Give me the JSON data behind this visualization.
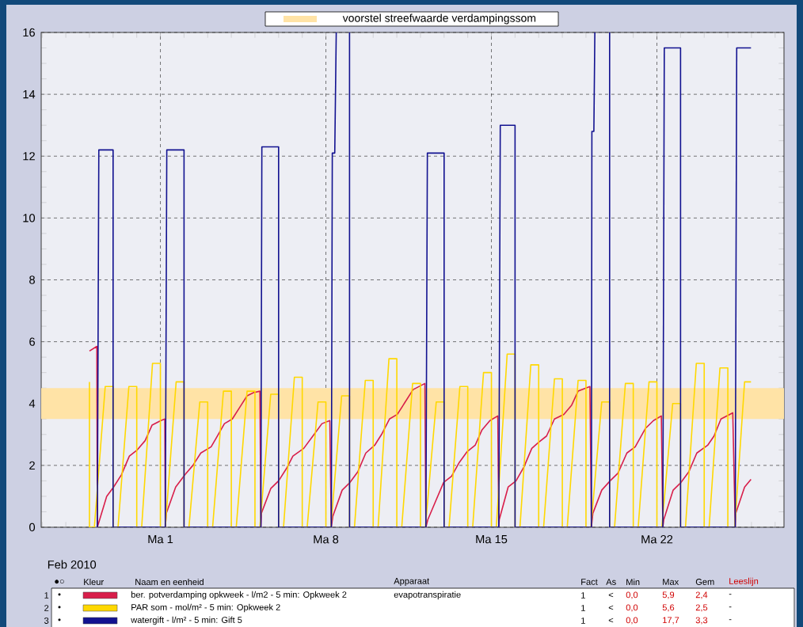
{
  "chart_data": {
    "type": "line",
    "xlabel": "Feb 2010",
    "xlim": [
      "2010-02-23T23:00",
      "2010-03-27T09:00"
    ],
    "xticks": [
      {
        "value": "2010-03-01",
        "label": "Ma 1"
      },
      {
        "value": "2010-03-08",
        "label": "Ma 8"
      },
      {
        "value": "2010-03-15",
        "label": "Ma 15"
      },
      {
        "value": "2010-03-22",
        "label": "Ma 22"
      }
    ],
    "ylim": [
      0,
      16
    ],
    "yticks": [
      0,
      2,
      4,
      6,
      8,
      10,
      12,
      14,
      16
    ],
    "grid": true,
    "legend": "bottom",
    "bands": [
      {
        "axis": "y",
        "from": 3.5,
        "to": 4.5,
        "label": "voorstel streefwaarde verdampingssom",
        "color": "#ffe3a6"
      }
    ],
    "series": [
      {
        "name": "ber. potverdamping opkweek - l/m2 - 5 min: Opkweek 2",
        "color": "#d81e4a",
        "x": [
          "2010-02-26T00:00",
          "2010-02-26T07:30",
          "2010-02-26T08:00",
          "2010-02-26T17:30",
          "2010-02-27T00:30",
          "2010-02-27T08:30",
          "2010-02-27T16:30",
          "2010-02-28T00:30",
          "2010-02-28T08:30",
          "2010-02-28T15:30",
          "2010-03-01T00:30",
          "2010-03-01T04:30",
          "2010-03-01T05:00",
          "2010-03-01T06:00",
          "2010-03-01T15:30",
          "2010-03-02T01:00",
          "2010-03-02T09:00",
          "2010-03-02T17:00",
          "2010-03-03T03:30",
          "2010-03-03T09:00",
          "2010-03-03T17:00",
          "2010-03-04T01:00",
          "2010-03-04T09:00",
          "2010-03-04T16:00",
          "2010-03-04T22:30",
          "2010-03-05T05:00",
          "2010-03-05T06:00",
          "2010-03-05T06:30",
          "2010-03-05T16:00",
          "2010-03-06T00:00",
          "2010-03-06T08:00",
          "2010-03-06T14:30",
          "2010-03-07T01:30",
          "2010-03-07T12:00",
          "2010-03-07T20:00",
          "2010-03-08T04:00",
          "2010-03-08T05:30",
          "2010-03-08T07:00",
          "2010-03-08T16:30",
          "2010-03-09T00:30",
          "2010-03-09T08:30",
          "2010-03-09T16:30",
          "2010-03-10T01:30",
          "2010-03-10T08:30",
          "2010-03-10T16:30",
          "2010-03-11T00:30",
          "2010-03-11T08:30",
          "2010-03-11T16:30",
          "2010-03-12T04:30",
          "2010-03-12T05:30",
          "2010-03-12T07:30",
          "2010-03-12T15:30",
          "2010-03-12T23:30",
          "2010-03-13T07:30",
          "2010-03-13T15:30",
          "2010-03-13T23:30",
          "2010-03-14T07:30",
          "2010-03-14T14:30",
          "2010-03-14T22:30",
          "2010-03-15T06:30",
          "2010-03-15T07:30",
          "2010-03-15T08:00",
          "2010-03-15T17:00",
          "2010-03-16T01:00",
          "2010-03-16T09:00",
          "2010-03-16T17:00",
          "2010-03-17T00:00",
          "2010-03-17T08:00",
          "2010-03-17T16:00",
          "2010-03-18T01:30",
          "2010-03-18T09:30",
          "2010-03-18T16:00",
          "2010-03-19T04:00",
          "2010-03-19T05:30",
          "2010-03-19T07:00",
          "2010-03-19T16:00",
          "2010-03-20T00:30",
          "2010-03-20T08:30",
          "2010-03-20T17:30",
          "2010-03-21T02:00",
          "2010-03-21T12:30",
          "2010-03-21T20:30",
          "2010-03-22T04:30",
          "2010-03-22T06:00",
          "2010-03-22T07:00",
          "2010-03-22T16:30",
          "2010-03-23T00:30",
          "2010-03-23T08:30",
          "2010-03-23T16:30",
          "2010-03-24T03:30",
          "2010-03-24T10:00",
          "2010-03-24T17:00",
          "2010-03-25T05:00",
          "2010-03-25T07:30",
          "2010-03-25T08:00",
          "2010-03-25T17:00",
          "2010-03-25T23:30"
        ],
        "values": [
          5.7,
          5.85,
          0,
          1.0,
          1.3,
          1.7,
          2.3,
          2.5,
          2.8,
          3.3,
          3.45,
          3.5,
          0,
          0.45,
          1.3,
          1.7,
          2.0,
          2.4,
          2.6,
          2.9,
          3.35,
          3.5,
          3.9,
          4.25,
          4.35,
          4.4,
          0,
          0.45,
          1.25,
          1.5,
          1.9,
          2.3,
          2.55,
          3.0,
          3.35,
          3.45,
          0,
          0.35,
          1.2,
          1.45,
          1.8,
          2.4,
          2.65,
          3.0,
          3.5,
          3.65,
          4.05,
          4.45,
          4.65,
          0,
          0.25,
          0.85,
          1.45,
          1.65,
          2.1,
          2.45,
          2.65,
          3.15,
          3.45,
          3.6,
          0,
          0.25,
          1.3,
          1.5,
          1.95,
          2.55,
          2.75,
          2.95,
          3.5,
          3.65,
          3.95,
          4.4,
          4.55,
          0,
          0.45,
          1.2,
          1.5,
          1.75,
          2.4,
          2.6,
          3.2,
          3.45,
          3.6,
          0,
          0.25,
          1.2,
          1.45,
          1.8,
          2.4,
          2.65,
          2.95,
          3.5,
          3.7,
          0,
          0.45,
          1.3,
          1.55
        ]
      },
      {
        "name": "PAR som - mol/m² - 5 min: Opkweek 2",
        "color": "#ffd800",
        "x": [
          "2010-02-26T00:00",
          "2010-02-26T00:00",
          "2010-02-26T05:00",
          "2010-02-26T16:00",
          "2010-02-27T00:00",
          "2010-02-27T00:00",
          "2010-02-27T05:00",
          "2010-02-27T16:00",
          "2010-02-28T00:00",
          "2010-02-28T00:00",
          "2010-02-28T05:00",
          "2010-02-28T16:00",
          "2010-03-01T00:00",
          "2010-03-01T00:00",
          "2010-03-01T05:00",
          "2010-03-01T16:00",
          "2010-03-02T00:00",
          "2010-03-02T00:00",
          "2010-03-02T05:00",
          "2010-03-02T16:00",
          "2010-03-03T00:00",
          "2010-03-03T00:00",
          "2010-03-03T05:00",
          "2010-03-03T16:00",
          "2010-03-04T00:00",
          "2010-03-04T00:00",
          "2010-03-04T05:00",
          "2010-03-04T16:00",
          "2010-03-05T00:00",
          "2010-03-05T00:00",
          "2010-03-05T05:00",
          "2010-03-05T16:00",
          "2010-03-06T00:00",
          "2010-03-06T00:00",
          "2010-03-06T05:00",
          "2010-03-06T16:00",
          "2010-03-07T00:00",
          "2010-03-07T00:00",
          "2010-03-07T05:00",
          "2010-03-07T16:00",
          "2010-03-08T00:00",
          "2010-03-08T00:00",
          "2010-03-08T05:00",
          "2010-03-08T16:00",
          "2010-03-09T00:00",
          "2010-03-09T00:00",
          "2010-03-09T05:00",
          "2010-03-09T16:00",
          "2010-03-10T00:00",
          "2010-03-10T00:00",
          "2010-03-10T05:00",
          "2010-03-10T16:00",
          "2010-03-11T00:00",
          "2010-03-11T00:00",
          "2010-03-11T05:00",
          "2010-03-11T16:00",
          "2010-03-12T00:00",
          "2010-03-12T00:00",
          "2010-03-12T05:00",
          "2010-03-12T16:00",
          "2010-03-13T00:00",
          "2010-03-13T00:00",
          "2010-03-13T05:00",
          "2010-03-13T16:00",
          "2010-03-14T00:00",
          "2010-03-14T00:00",
          "2010-03-14T05:00",
          "2010-03-14T16:00",
          "2010-03-15T00:00",
          "2010-03-15T00:00",
          "2010-03-15T05:00",
          "2010-03-15T16:00",
          "2010-03-16T00:00",
          "2010-03-16T00:00",
          "2010-03-16T05:00",
          "2010-03-16T16:00",
          "2010-03-17T00:00",
          "2010-03-17T00:00",
          "2010-03-17T05:00",
          "2010-03-17T16:00",
          "2010-03-18T00:00",
          "2010-03-18T00:00",
          "2010-03-18T05:00",
          "2010-03-18T16:00",
          "2010-03-19T00:00",
          "2010-03-19T00:00",
          "2010-03-19T05:00",
          "2010-03-19T16:00",
          "2010-03-20T00:00",
          "2010-03-20T00:00",
          "2010-03-20T05:00",
          "2010-03-20T16:00",
          "2010-03-21T00:00",
          "2010-03-21T00:00",
          "2010-03-21T05:00",
          "2010-03-21T16:00",
          "2010-03-22T00:00",
          "2010-03-22T00:00",
          "2010-03-22T05:00",
          "2010-03-22T16:00",
          "2010-03-23T00:00",
          "2010-03-23T00:00",
          "2010-03-23T05:00",
          "2010-03-23T16:00",
          "2010-03-24T00:00",
          "2010-03-24T00:00",
          "2010-03-24T05:00",
          "2010-03-24T16:00",
          "2010-03-25T00:00",
          "2010-03-25T00:00",
          "2010-03-25T07:00",
          "2010-03-25T17:00",
          "2010-03-25T23:30"
        ],
        "values": [
          4.7,
          0,
          0,
          4.55,
          4.55,
          0,
          0,
          4.55,
          4.55,
          0,
          0,
          5.3,
          5.3,
          0,
          0,
          4.7,
          4.7,
          0,
          0,
          4.05,
          4.05,
          0,
          0,
          4.4,
          4.4,
          0,
          0,
          4.4,
          4.4,
          0,
          0,
          4.3,
          4.3,
          0,
          0,
          4.85,
          4.85,
          0,
          0,
          4.05,
          4.05,
          0,
          0,
          4.25,
          4.25,
          0,
          0,
          4.75,
          4.75,
          0,
          0,
          5.45,
          5.45,
          0,
          0,
          4.65,
          4.65,
          0,
          0,
          4.05,
          4.05,
          0,
          0,
          4.55,
          4.55,
          0,
          0,
          5.0,
          5.0,
          0,
          0,
          5.6,
          5.6,
          0,
          0,
          5.25,
          5.25,
          0,
          0,
          4.8,
          4.8,
          0,
          0,
          4.75,
          4.75,
          0,
          0,
          4.05,
          4.05,
          0,
          0,
          4.65,
          4.65,
          0,
          0,
          4.7,
          4.7,
          0,
          0,
          4.0,
          4.0,
          0,
          0,
          5.3,
          5.3,
          0,
          0,
          5.15,
          5.15,
          0,
          0,
          4.7,
          4.7
        ]
      },
      {
        "name": "watergift - l/m² - 5 min: Gift 5",
        "color": "#121290",
        "x": [
          "2010-02-26T08:00",
          "2010-02-26T09:30",
          "2010-02-27T00:00",
          "2010-02-27T00:00",
          "2010-03-01T05:00",
          "2010-03-01T06:30",
          "2010-03-02T00:00",
          "2010-03-02T00:00",
          "2010-03-05T06:00",
          "2010-03-05T07:00",
          "2010-03-06T00:00",
          "2010-03-06T00:00",
          "2010-03-08T05:30",
          "2010-03-08T06:30",
          "2010-03-08T09:00",
          "2010-03-08T10:30",
          "2010-03-08T12:00",
          "2010-03-09T00:00",
          "2010-03-09T00:00",
          "2010-03-12T05:30",
          "2010-03-12T07:00",
          "2010-03-13T00:00",
          "2010-03-13T00:00",
          "2010-03-15T07:30",
          "2010-03-15T09:00",
          "2010-03-16T00:00",
          "2010-03-16T00:00",
          "2010-03-19T05:30",
          "2010-03-19T06:00",
          "2010-03-19T08:00",
          "2010-03-19T09:00",
          "2010-03-19T12:00",
          "2010-03-20T00:00",
          "2010-03-20T00:00",
          "2010-03-22T06:00",
          "2010-03-22T07:30",
          "2010-03-23T00:00",
          "2010-03-23T00:00",
          "2010-03-25T07:30",
          "2010-03-25T09:00",
          "2010-03-25T23:30"
        ],
        "values": [
          0,
          12.2,
          12.2,
          0,
          0,
          12.2,
          12.2,
          0,
          0,
          12.3,
          12.3,
          0,
          0,
          12.1,
          12.1,
          16,
          null,
          16,
          0,
          0,
          12.1,
          12.1,
          0,
          0,
          13.0,
          13.0,
          0,
          0,
          12.8,
          12.8,
          16,
          null,
          16,
          0,
          0,
          15.5,
          15.5,
          0,
          0,
          15.5,
          15.5
        ]
      }
    ],
    "annotations": [
      "●○",
      "Kleur",
      "Naam en eenheid",
      "Apparaat",
      "Fact",
      "As",
      "Min",
      "Max",
      "Gem",
      "Leeslijn",
      "1",
      "•",
      "1",
      "<",
      "0,0",
      "5,9",
      "2,4",
      "-",
      "2",
      "•",
      "1",
      "<",
      "0,0",
      "5,6",
      "2,5",
      "-",
      "3",
      "•",
      "1",
      "<",
      "0,0",
      "17,7",
      "3,3",
      "-",
      "evapotranspiratie"
    ]
  }
}
